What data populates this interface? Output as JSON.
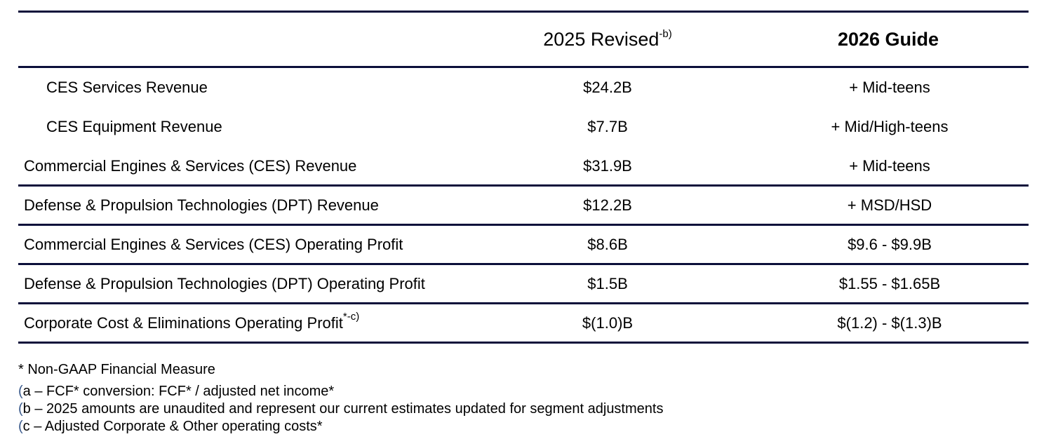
{
  "header": {
    "col1": "2025 Revised",
    "col1_sup": "-b)",
    "col2": "2026 Guide"
  },
  "rows": [
    {
      "label": "CES Services Revenue",
      "v2025": "$24.2B",
      "v2026": "+ Mid-teens"
    },
    {
      "label": "CES Equipment Revenue",
      "v2025": "$7.7B",
      "v2026": "+ Mid/High-teens"
    },
    {
      "label": "Commercial Engines & Services (CES) Revenue",
      "v2025": "$31.9B",
      "v2026": "+ Mid-teens"
    },
    {
      "label": "Defense & Propulsion Technologies (DPT) Revenue",
      "v2025": "$12.2B",
      "v2026": "+ MSD/HSD"
    },
    {
      "label": "Commercial Engines & Services (CES) Operating Profit",
      "v2025": "$8.6B",
      "v2026": "$9.6 - $9.9B"
    },
    {
      "label": "Defense & Propulsion Technologies (DPT) Operating Profit",
      "v2025": "$1.5B",
      "v2026": "$1.55 - $1.65B"
    },
    {
      "label": "Corporate Cost & Eliminations Operating Profit",
      "label_sup": "*-c)",
      "v2025": "$(1.0)B",
      "v2026": "$(1.2) - $(1.3)B"
    }
  ],
  "footnotes": {
    "main": "* Non-GAAP Financial Measure",
    "items": [
      {
        "paren": "(",
        "text": "a – FCF* conversion: FCF* / adjusted net income*"
      },
      {
        "paren": "(",
        "text": "b – 2025 amounts are unaudited and represent our current estimates updated for segment adjustments"
      },
      {
        "paren": "(",
        "text": "c – Adjusted Corporate & Other operating costs*"
      }
    ]
  },
  "colors": {
    "rule": "#0b0f3a",
    "footnote_paren": "#3a5a8c"
  }
}
